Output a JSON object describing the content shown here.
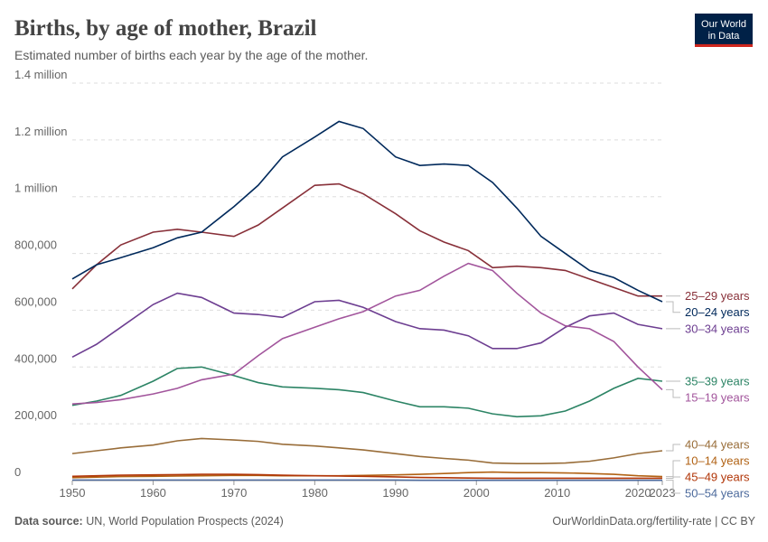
{
  "chart_data": {
    "type": "line",
    "title": "Births, by age of mother, Brazil",
    "subtitle": "Estimated number of births each year by the age of the mother.",
    "logo": [
      "Our World",
      "in Data"
    ],
    "source_label": "Data source:",
    "source": "UN, World Population Prospects (2024)",
    "footer_right": "OurWorldinData.org/fertility-rate | CC BY",
    "x": [
      1950,
      1953,
      1956,
      1960,
      1963,
      1966,
      1970,
      1973,
      1976,
      1980,
      1983,
      1986,
      1990,
      1993,
      1996,
      1999,
      2002,
      2005,
      2008,
      2011,
      2014,
      2017,
      2020,
      2023
    ],
    "xlim": [
      1950,
      2023
    ],
    "xticks": [
      1950,
      1960,
      1970,
      1980,
      1990,
      2000,
      2010,
      2020,
      2023
    ],
    "ylim": [
      0,
      1400000
    ],
    "yticks": [
      0,
      {
        "value": 200000,
        "label": "200,000"
      },
      {
        "value": 400000,
        "label": "400,000"
      },
      {
        "value": 600000,
        "label": "600,000"
      },
      {
        "value": 800000,
        "label": "800,000"
      },
      {
        "value": 1000000,
        "label": "1 million"
      },
      {
        "value": 1200000,
        "label": "1.2 million"
      },
      {
        "value": 1400000,
        "label": "1.4 million"
      }
    ],
    "grid": true,
    "series": [
      {
        "name": "25–29 years",
        "color": "#883039",
        "values": [
          675000,
          760000,
          830000,
          875000,
          885000,
          875000,
          860000,
          900000,
          960000,
          1040000,
          1045000,
          1010000,
          940000,
          880000,
          840000,
          810000,
          750000,
          755000,
          750000,
          740000,
          710000,
          680000,
          650000,
          650000
        ]
      },
      {
        "name": "20–24 years",
        "color": "#00295b",
        "values": [
          710000,
          760000,
          785000,
          820000,
          855000,
          875000,
          965000,
          1040000,
          1140000,
          1210000,
          1265000,
          1240000,
          1140000,
          1110000,
          1115000,
          1110000,
          1050000,
          960000,
          860000,
          800000,
          740000,
          715000,
          670000,
          630000
        ]
      },
      {
        "name": "30–34 years",
        "color": "#6d3e91",
        "values": [
          435000,
          480000,
          540000,
          620000,
          660000,
          645000,
          590000,
          585000,
          575000,
          630000,
          635000,
          610000,
          560000,
          535000,
          530000,
          510000,
          465000,
          465000,
          485000,
          540000,
          580000,
          590000,
          550000,
          535000
        ]
      },
      {
        "name": "35–39 years",
        "color": "#2c8465",
        "values": [
          265000,
          280000,
          300000,
          350000,
          395000,
          400000,
          370000,
          345000,
          330000,
          325000,
          320000,
          310000,
          280000,
          260000,
          260000,
          255000,
          235000,
          225000,
          228000,
          245000,
          280000,
          325000,
          360000,
          350000
        ]
      },
      {
        "name": "15–19 years",
        "color": "#a2559c",
        "values": [
          270000,
          275000,
          285000,
          305000,
          325000,
          355000,
          375000,
          440000,
          500000,
          540000,
          570000,
          595000,
          650000,
          670000,
          720000,
          765000,
          740000,
          660000,
          590000,
          545000,
          535000,
          490000,
          400000,
          320000
        ]
      },
      {
        "name": "40–44 years",
        "color": "#996d39",
        "values": [
          95000,
          105000,
          115000,
          125000,
          140000,
          148000,
          143000,
          138000,
          128000,
          122000,
          115000,
          108000,
          95000,
          85000,
          78000,
          72000,
          62000,
          60000,
          60000,
          62000,
          68000,
          80000,
          95000,
          105000
        ]
      },
      {
        "name": "10–14 years",
        "color": "#b16214",
        "values": [
          10000,
          12000,
          14000,
          15000,
          16000,
          17000,
          18000,
          18000,
          17000,
          17000,
          17000,
          18000,
          20000,
          22000,
          25000,
          28000,
          30000,
          28000,
          28000,
          27000,
          25000,
          22000,
          17000,
          14000
        ]
      },
      {
        "name": "45–49 years",
        "color": "#b13507",
        "values": [
          15000,
          17000,
          19000,
          20000,
          21000,
          22000,
          22000,
          21000,
          19000,
          17000,
          16000,
          15000,
          13000,
          11000,
          10000,
          9000,
          8000,
          8000,
          8000,
          8000,
          8000,
          8000,
          8000,
          8000
        ]
      },
      {
        "name": "50–54 years",
        "color": "#4c6a9c",
        "values": [
          2000,
          2000,
          2000,
          2000,
          2000,
          2000,
          2000,
          2000,
          2000,
          2000,
          2000,
          2000,
          2000,
          1000,
          1000,
          1000,
          1000,
          1000,
          1000,
          1000,
          1000,
          1000,
          1000,
          1000
        ]
      }
    ]
  }
}
